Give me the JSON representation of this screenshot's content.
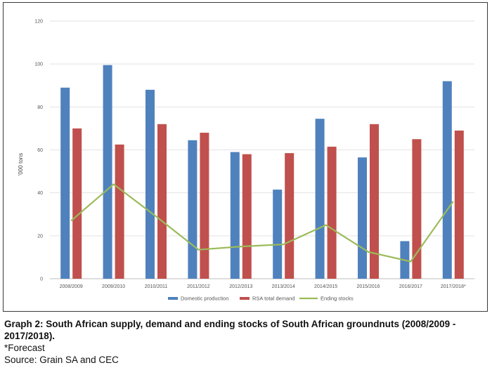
{
  "chart_data": {
    "type": "bar",
    "categories": [
      "2008/2009",
      "2009/2010",
      "2010/2011",
      "2011/2012",
      "2012/2013",
      "2013/2014",
      "2014/2015",
      "2015/2016",
      "2016/2017",
      "2017/2018*"
    ],
    "series": [
      {
        "name": "Domestic production",
        "type": "bar",
        "color": "#4f81bd",
        "values": [
          89,
          99.5,
          88,
          64.5,
          59,
          41.5,
          74.5,
          56.5,
          17.5,
          92
        ]
      },
      {
        "name": "RSA total demand",
        "type": "bar",
        "color": "#c0504d",
        "values": [
          70,
          62.5,
          72,
          68,
          58,
          58.5,
          61.5,
          72,
          65,
          69
        ]
      },
      {
        "name": "Ending stocks",
        "type": "line",
        "color": "#9bbb59",
        "values": [
          27,
          44,
          29,
          13.5,
          15,
          16,
          25,
          12.5,
          8,
          36
        ]
      }
    ],
    "ylabel": "'000 tons",
    "ylim": [
      0,
      120
    ],
    "yticks": [
      0,
      20,
      40,
      60,
      80,
      100,
      120
    ],
    "grid": true,
    "legend_position": "bottom"
  },
  "caption": {
    "title": "Graph 2: South African supply, demand and ending stocks of South African groundnuts (2008/2009 - 2017/2018).",
    "footnote": "*Forecast",
    "source": "Source: Grain SA and CEC"
  }
}
